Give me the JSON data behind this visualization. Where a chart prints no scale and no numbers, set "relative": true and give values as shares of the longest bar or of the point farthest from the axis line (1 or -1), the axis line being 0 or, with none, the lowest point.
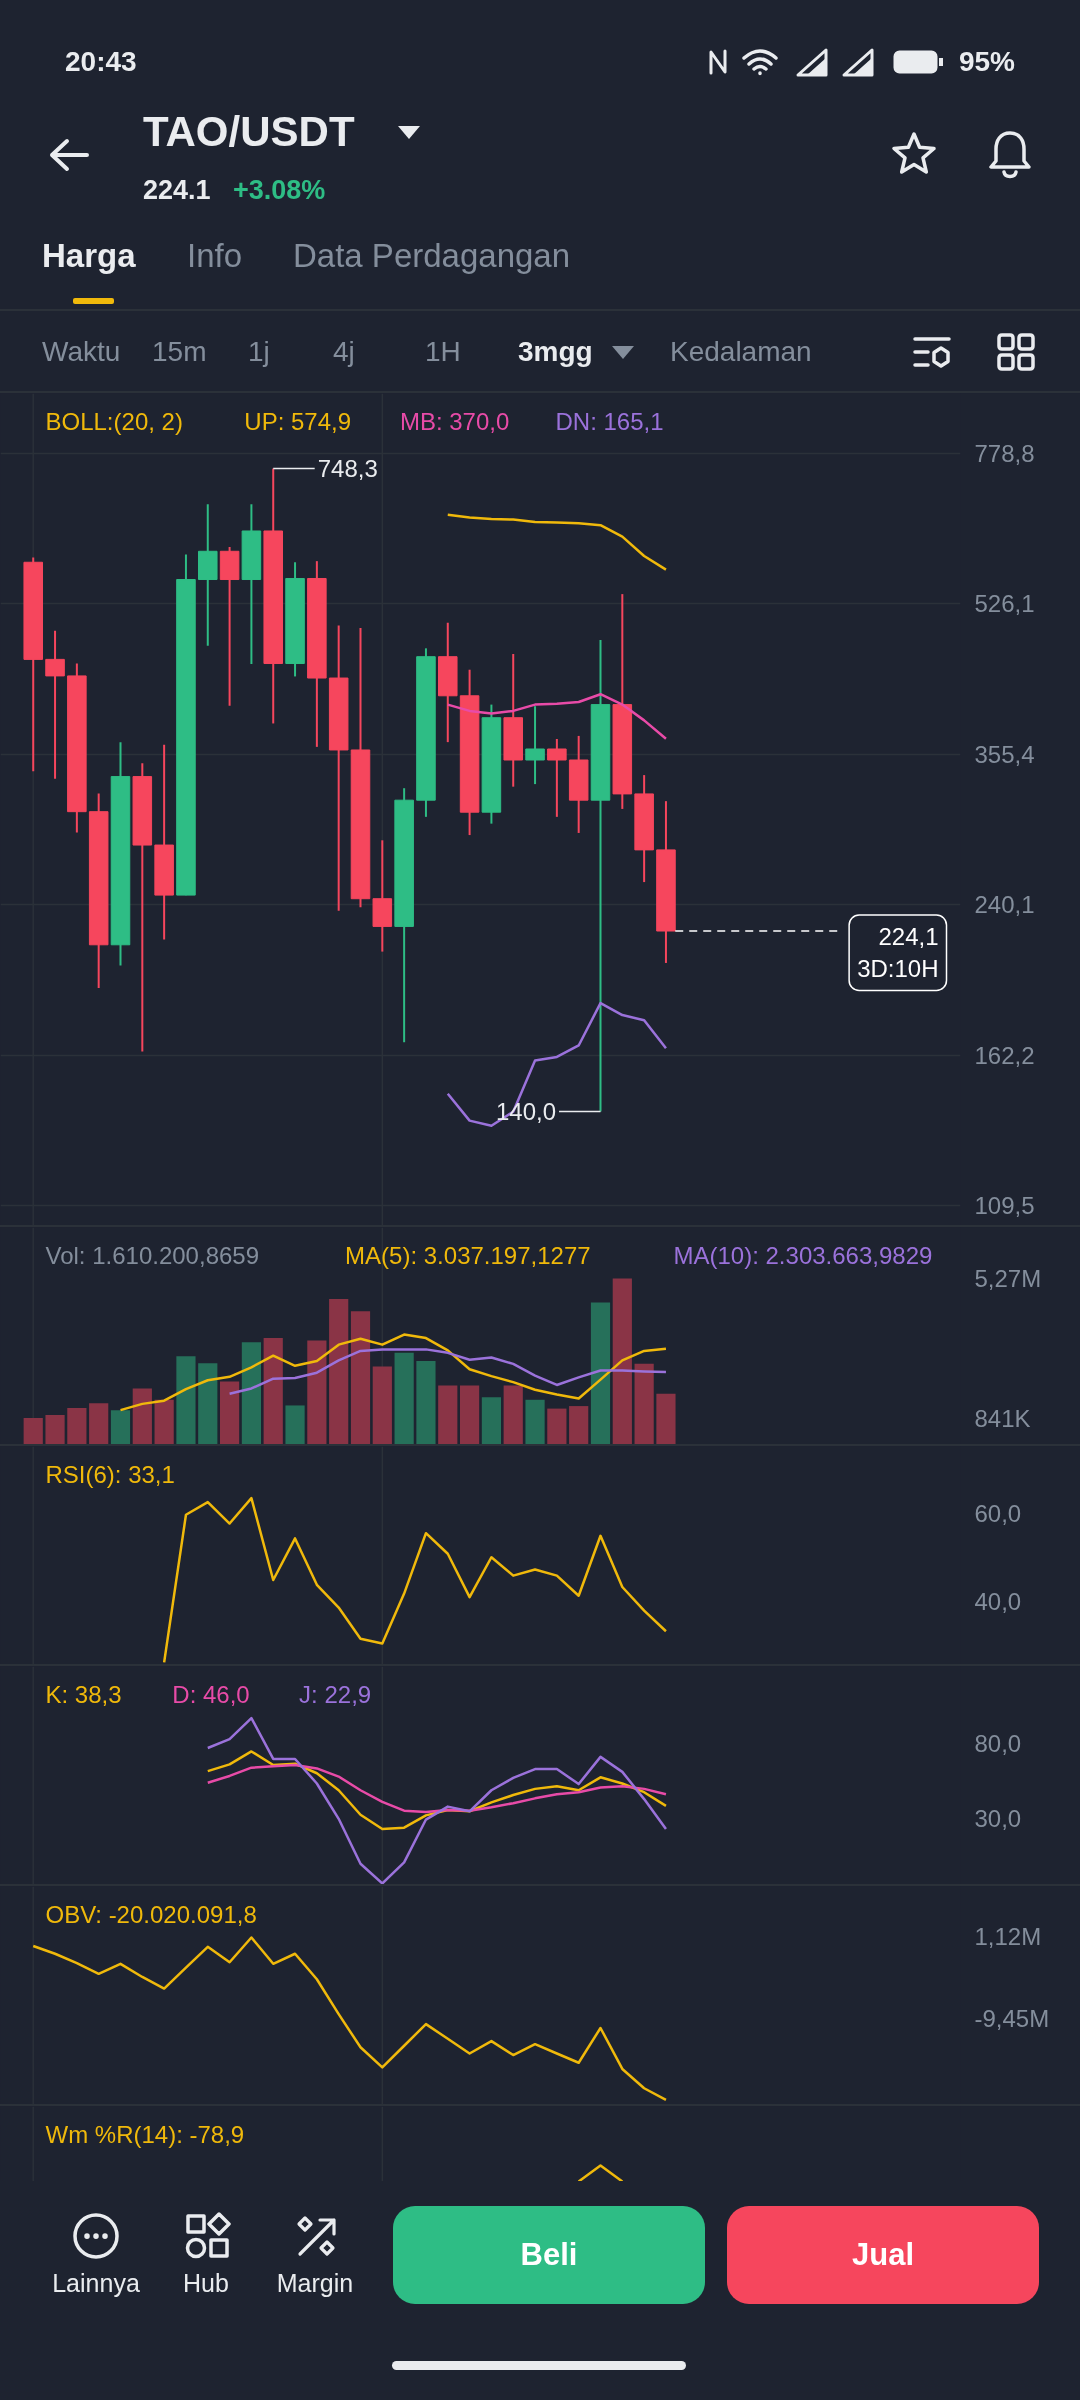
{
  "chart_data": [
    {
      "type": "other",
      "annotations": [
        "20:43",
        "95%"
      ]
    },
    {
      "type": "other",
      "title": "TAO/USDT",
      "annotations": [
        "224.1",
        "+3.08%"
      ],
      "colors": [
        null,
        "#2ebd85"
      ]
    },
    {
      "type": "other",
      "annotations": [
        "Harga",
        "Info",
        "Data Perdagangan"
      ]
    },
    {
      "type": "other",
      "annotations": [
        "Waktu",
        "15m",
        "1j",
        "4j",
        "1H",
        "3mgg",
        "Kedalaman"
      ]
    },
    {
      "type": "candlestick",
      "categories": [
        null,
        null,
        null,
        null,
        null,
        null,
        null,
        null,
        null,
        null,
        null,
        null,
        null,
        null,
        null,
        null,
        null,
        null,
        null,
        null,
        null,
        null,
        null,
        null,
        null,
        null,
        null,
        null,
        null,
        null,
        null,
        null,
        null,
        null,
        null,
        null,
        null,
        null,
        null,
        null,
        null,
        null,
        null,
        null
      ],
      "ohlc": [
        null,
        [
          586.1,
          593.3,
          339.8,
          455.0
        ],
        [
          455.0,
          490.4,
          333.4,
          435.8
        ],
        [
          435.8,
          450.1,
          289.7,
          305.9
        ],
        [
          305.9,
          320.8,
          193.2,
          216.2
        ],
        [
          216.2,
          366.7,
          204.8,
          335.2
        ],
        [
          335.2,
          347.1,
          163.7,
          280.4
        ],
        [
          280.4,
          364.2,
          219.2,
          246.1
        ],
        [
          246.1,
          598.2,
          246.0,
          560.3
        ],
        [
          560.3,
          681.6,
          471.6,
          603.1
        ],
        [
          603.1,
          609.7,
          403.3,
          560.3
        ],
        [
          560.3,
          681.6,
          449.5,
          635.9
        ],
        [
          635.9,
          748.3,
          385.0,
          450.1
        ],
        [
          450.1,
          586.1,
          435.2,
          561.8
        ],
        [
          561.8,
          587.8,
          362.2,
          433.4
        ],
        [
          433.4,
          497.1,
          236.3,
          359.3
        ],
        [
          359.3,
          493.8,
          238.5,
          243.8
        ],
        [
          243.8,
          283.9,
          212.4,
          226.8
        ],
        [
          226.8,
          325.2,
          167.7,
          315.2
        ],
        [
          315.2,
          468.3,
          301.8,
          458.2
        ],
        [
          458.2,
          500.6,
          366.7,
          413.8
        ],
        [
          413.8,
          442.9,
          287.8,
          305.5
        ],
        [
          305.5,
          404.4,
          296.5,
          390.8
        ],
        [
          390.8,
          461.4,
          326.5,
          350.0
        ],
        [
          350.0,
          402.7,
          328.7,
          360.2
        ],
        [
          360.2,
          369.7,
          301.8,
          350.0
        ],
        [
          350.0,
          372.7,
          289.4,
          315.2
        ],
        [
          315.2,
          478.6,
          140.0,
          404.4
        ],
        [
          404.4,
          539.4,
          308.1,
          320.4
        ],
        [
          320.4,
          336.5,
          254.6,
          276.9
        ],
        [
          276.9,
          314.4,
          206.2,
          224.1
        ],
        null,
        null,
        null,
        null,
        null,
        null,
        null,
        null,
        null,
        null,
        null,
        null,
        null
      ],
      "colors": [
        null,
        "#f6465d",
        "#f6465d",
        "#f6465d",
        "#f6465d",
        "#2ebd85",
        "#f6465d",
        "#f6465d",
        "#2ebd85",
        "#2ebd85",
        "#f6465d",
        "#2ebd85",
        "#f6465d",
        "#2ebd85",
        "#f6465d",
        "#f6465d",
        "#f6465d",
        "#f6465d",
        "#2ebd85",
        "#2ebd85",
        "#f6465d",
        "#f6465d",
        "#2ebd85",
        "#f6465d",
        "#2ebd85",
        "#f6465d",
        "#f6465d",
        "#2ebd85",
        "#f6465d",
        "#f6465d",
        "#f6465d",
        null,
        null,
        null,
        null,
        null,
        null,
        null,
        null,
        null,
        null,
        null,
        null,
        null
      ],
      "log": "y",
      "ylim": [
        104,
        910
      ],
      "yticks": [
        {
          "value": 778.8,
          "label": "778,8"
        },
        {
          "value": 526.1,
          "label": "526,1"
        },
        {
          "value": 355.4,
          "label": "355,4"
        },
        {
          "value": 240.1,
          "label": "240,1"
        },
        {
          "value": 162.2,
          "label": "162,2"
        },
        {
          "value": 109.5,
          "label": "109,5"
        }
      ],
      "grid": "y",
      "legend_title": "BOLL:(20, 2)",
      "series": [
        {
          "type": "line",
          "name": "UP: 574,9",
          "color": "#f0b90b",
          "values": [
            null,
            null,
            null,
            null,
            null,
            null,
            null,
            null,
            null,
            null,
            null,
            null,
            null,
            null,
            null,
            null,
            null,
            null,
            null,
            null,
            663.3,
            658.8,
            656.1,
            655.2,
            650.8,
            649.9,
            649.0,
            645.5,
            626.5,
            595.8,
            574.9,
            null,
            null,
            null,
            null,
            null,
            null,
            null,
            null,
            null,
            null,
            null,
            null,
            null
          ]
        },
        {
          "type": "line",
          "name": "MB: 370,0",
          "color": "#e84ba8",
          "values": [
            null,
            null,
            null,
            null,
            null,
            null,
            null,
            null,
            null,
            null,
            null,
            null,
            null,
            null,
            null,
            null,
            null,
            null,
            null,
            null,
            404.4,
            397.8,
            395.1,
            397.8,
            404.4,
            405.4,
            407.1,
            415.5,
            404.4,
            388.1,
            370.0,
            null,
            null,
            null,
            null,
            null,
            null,
            null,
            null,
            null,
            null,
            null,
            null,
            null
          ]
        },
        {
          "type": "line",
          "name": "DN: 165,1",
          "color": "#9b72db",
          "values": [
            null,
            null,
            null,
            null,
            null,
            null,
            null,
            null,
            null,
            null,
            null,
            null,
            null,
            null,
            null,
            null,
            null,
            null,
            null,
            null,
            146.6,
            136.7,
            134.9,
            139.9,
            159.9,
            161.4,
            166.3,
            185.7,
            180.0,
            177.6,
            165.1,
            null,
            null,
            null,
            null,
            null,
            null,
            null,
            null,
            null,
            null,
            null,
            null,
            null
          ]
        }
      ],
      "ref_lines": [
        {
          "axis": "y",
          "value": 224.1,
          "label": "224,1",
          "line_style": "dashed",
          "color": "#ffffff"
        }
      ],
      "annotations": [
        "748,3",
        "140,0",
        "3D:10H"
      ]
    },
    {
      "type": "bar",
      "categories": [
        null,
        null,
        null,
        null,
        null,
        null,
        null,
        null,
        null,
        null,
        null,
        null,
        null,
        null,
        null,
        null,
        null,
        null,
        null,
        null,
        null,
        null,
        null,
        null,
        null,
        null,
        null,
        null,
        null,
        null,
        null,
        null,
        null,
        null,
        null,
        null,
        null,
        null,
        null,
        null,
        null,
        null,
        null,
        null
      ],
      "ylim": [
        0,
        6890000
      ],
      "yticks": [
        {
          "value": 5270000,
          "label": "5,27M"
        },
        {
          "value": 841000,
          "label": "841K"
        }
      ],
      "legend_title": "Vol: 1.610.200,8659",
      "series": [
        {
          "type": "bar",
          "colors": [
            null,
            "#8a3446",
            "#8a3446",
            "#8a3446",
            "#8a3446",
            "#26705a",
            "#8a3446",
            "#8a3446",
            "#26705a",
            "#26705a",
            "#8a3446",
            "#26705a",
            "#8a3446",
            "#26705a",
            "#8a3446",
            "#8a3446",
            "#8a3446",
            "#8a3446",
            "#26705a",
            "#26705a",
            "#8a3446",
            "#8a3446",
            "#26705a",
            "#8a3446",
            "#26705a",
            "#8a3446",
            "#8a3446",
            "#26705a",
            "#8a3446",
            "#8a3446",
            "#8a3446",
            null,
            null,
            null,
            null,
            null,
            null,
            null,
            null,
            null,
            null,
            null,
            null,
            null
          ],
          "values": [
            null,
            840000,
            940000,
            1160000,
            1310000,
            1090000,
            1780000,
            1420000,
            2800000,
            2580000,
            2000000,
            3250000,
            3380000,
            1240000,
            3300000,
            4620000,
            4230000,
            2480000,
            2910000,
            2650000,
            1870000,
            1870000,
            1500000,
            1870000,
            1420000,
            1140000,
            1220000,
            4510000,
            5270000,
            2560000,
            1610000,
            null,
            null,
            null,
            null,
            null,
            null,
            null,
            null,
            null,
            null,
            null,
            null,
            null
          ]
        },
        {
          "type": "line",
          "name": "MA(5): 3.037.197,1277",
          "color": "#f0b90b",
          "values": [
            null,
            null,
            null,
            null,
            null,
            1090000,
            1290000,
            1390000,
            1760000,
            2040000,
            2150000,
            2450000,
            2820000,
            2500000,
            2650000,
            3170000,
            3360000,
            3170000,
            3490000,
            3380000,
            2990000,
            2390000,
            2170000,
            1980000,
            1740000,
            1590000,
            1460000,
            2060000,
            2670000,
            2970000,
            3040000,
            null,
            null,
            null,
            null,
            null,
            null,
            null,
            null,
            null,
            null,
            null,
            null,
            null
          ]
        },
        {
          "type": "line",
          "name": "MA(10): 2.303.663,9829",
          "color": "#9b72db",
          "values": [
            null,
            null,
            null,
            null,
            null,
            null,
            null,
            null,
            null,
            null,
            1610000,
            1780000,
            2090000,
            2110000,
            2280000,
            2670000,
            2970000,
            3020000,
            3020000,
            3020000,
            2910000,
            2690000,
            2760000,
            2560000,
            2190000,
            1890000,
            2130000,
            2350000,
            2350000,
            2320000,
            2300000,
            null,
            null,
            null,
            null,
            null,
            null,
            null,
            null,
            null,
            null,
            null,
            null,
            null
          ]
        }
      ]
    },
    {
      "type": "line",
      "categories": [
        null,
        null,
        null,
        null,
        null,
        null,
        null,
        null,
        null,
        null,
        null,
        null,
        null,
        null,
        null,
        null,
        null,
        null,
        null,
        null,
        null,
        null,
        null,
        null,
        null,
        null,
        null,
        null,
        null,
        null,
        null,
        null,
        null,
        null,
        null,
        null,
        null,
        null,
        null,
        null,
        null,
        null,
        null,
        null
      ],
      "ylim": [
        25.5,
        75.3
      ],
      "yticks": [
        {
          "value": 60,
          "label": "60,0"
        },
        {
          "value": 40,
          "label": "40,0"
        }
      ],
      "series": [
        {
          "name": "RSI(6): 33,1",
          "color": "#f0b90b",
          "values": [
            null,
            null,
            null,
            null,
            null,
            null,
            null,
            26.0,
            59.7,
            62.6,
            57.7,
            63.5,
            44.8,
            54.3,
            43.7,
            38.5,
            31.4,
            30.3,
            41.7,
            55.5,
            50.8,
            40.9,
            50.0,
            45.8,
            47.2,
            45.8,
            41.2,
            54.9,
            43.2,
            37.8,
            33.1,
            null,
            null,
            null,
            null,
            null,
            null,
            null,
            null,
            null,
            null,
            null,
            null,
            null
          ]
        }
      ]
    },
    {
      "type": "line",
      "categories": [
        null,
        null,
        null,
        null,
        null,
        null,
        null,
        null,
        null,
        null,
        null,
        null,
        null,
        null,
        null,
        null,
        null,
        null,
        null,
        null,
        null,
        null,
        null,
        null,
        null,
        null,
        null,
        null,
        null,
        null,
        null,
        null,
        null,
        null,
        null,
        null,
        null,
        null,
        null,
        null,
        null,
        null,
        null,
        null
      ],
      "ylim": [
        -14,
        131
      ],
      "yticks": [
        {
          "value": 80,
          "label": "80,0"
        },
        {
          "value": 30,
          "label": "30,0"
        }
      ],
      "series": [
        {
          "name": "K: 38,3",
          "color": "#f0b90b",
          "values": [
            null,
            null,
            null,
            null,
            null,
            null,
            null,
            null,
            null,
            61.4,
            65.9,
            74.5,
            65.5,
            66.4,
            60.0,
            48.7,
            32.4,
            22.9,
            23.8,
            32.0,
            35.6,
            34.7,
            40.6,
            45.5,
            49.6,
            51.4,
            48.7,
            57.3,
            53.2,
            47.4,
            38.3,
            null,
            null,
            null,
            null,
            null,
            null,
            null,
            null,
            null,
            null,
            null,
            null,
            null
          ]
        },
        {
          "name": "D: 46,0",
          "color": "#e84ba8",
          "values": [
            null,
            null,
            null,
            null,
            null,
            null,
            null,
            null,
            null,
            53.7,
            58.2,
            63.7,
            64.6,
            65.5,
            63.2,
            57.8,
            48.7,
            41.0,
            35.1,
            34.2,
            35.6,
            35.1,
            37.4,
            40.1,
            43.3,
            46.0,
            47.4,
            50.5,
            51.4,
            49.6,
            46.0,
            null,
            null,
            null,
            null,
            null,
            null,
            null,
            null,
            null,
            null,
            null,
            null,
            null
          ]
        },
        {
          "name": "J: 22,9",
          "color": "#9b72db",
          "values": [
            null,
            null,
            null,
            null,
            null,
            null,
            null,
            null,
            null,
            76.8,
            82.7,
            96.7,
            69.5,
            69.5,
            53.2,
            29.7,
            -0.2,
            -13.3,
            0.7,
            29.2,
            37.8,
            34.7,
            48.7,
            56.9,
            62.8,
            62.8,
            52.8,
            70.9,
            60.9,
            42.8,
            22.9,
            null,
            null,
            null,
            null,
            null,
            null,
            null,
            null,
            null,
            null,
            null,
            null,
            null
          ]
        }
      ]
    },
    {
      "type": "line",
      "categories": [
        null,
        null,
        null,
        null,
        null,
        null,
        null,
        null,
        null,
        null,
        null,
        null,
        null,
        null,
        null,
        null,
        null,
        null,
        null,
        null,
        null,
        null,
        null,
        null,
        null,
        null,
        null,
        null,
        null,
        null,
        null,
        null,
        null,
        null,
        null,
        null,
        null,
        null,
        null,
        null,
        null,
        null,
        null,
        null
      ],
      "ylim": [
        -20600000,
        7600000
      ],
      "yticks": [
        {
          "value": 1120000,
          "label": "1,12M"
        },
        {
          "value": -9450000,
          "label": "-9,45M"
        }
      ],
      "series": [
        {
          "name": "OBV: -20.020.091,8",
          "color": "#f0b90b",
          "values": [
            null,
            -100000,
            -1100000,
            -2300000,
            -3700000,
            -2400000,
            -4100000,
            -5600000,
            -2900000,
            -200000,
            -2200000,
            1000000,
            -2400000,
            -1100000,
            -4400000,
            -8900000,
            -13200000,
            -15800000,
            -13000000,
            -10200000,
            -12100000,
            -14000000,
            -12400000,
            -14200000,
            -12800000,
            -14000000,
            -15200000,
            -10700000,
            -16000000,
            -18500000,
            -20000000,
            null,
            null,
            null,
            null,
            null,
            null,
            null,
            null,
            null,
            null,
            null,
            null,
            null
          ]
        }
      ]
    },
    {
      "type": "line",
      "relative": true,
      "categories": [
        null,
        null,
        null,
        null,
        null,
        null,
        null,
        null,
        null,
        null,
        null,
        null,
        null,
        null,
        null,
        null,
        null,
        null,
        null,
        null,
        null,
        null,
        null,
        null,
        null,
        null,
        null,
        null,
        null,
        null,
        null,
        null,
        null,
        null,
        null,
        null,
        null,
        null,
        null,
        null,
        null,
        null,
        null,
        null
      ],
      "series": [
        {
          "name": "Wm %R(14): -78,9",
          "color": "#f0b90b",
          "values": [
            null,
            null,
            null,
            null,
            null,
            null,
            null,
            null,
            null,
            null,
            null,
            null,
            null,
            null,
            null,
            null,
            null,
            null,
            null,
            null,
            null,
            null,
            null,
            null,
            null,
            null,
            0,
            1,
            0,
            null,
            null,
            null,
            null,
            null,
            null,
            null,
            null,
            null,
            null,
            null,
            null,
            null,
            null,
            null
          ]
        }
      ]
    },
    {
      "type": "other",
      "annotations": [
        "Lainnya",
        "Hub",
        "Margin",
        "Beli",
        "Jual"
      ],
      "colors": [
        null,
        null,
        null,
        "#2ebd85",
        "#f6465d"
      ]
    }
  ]
}
